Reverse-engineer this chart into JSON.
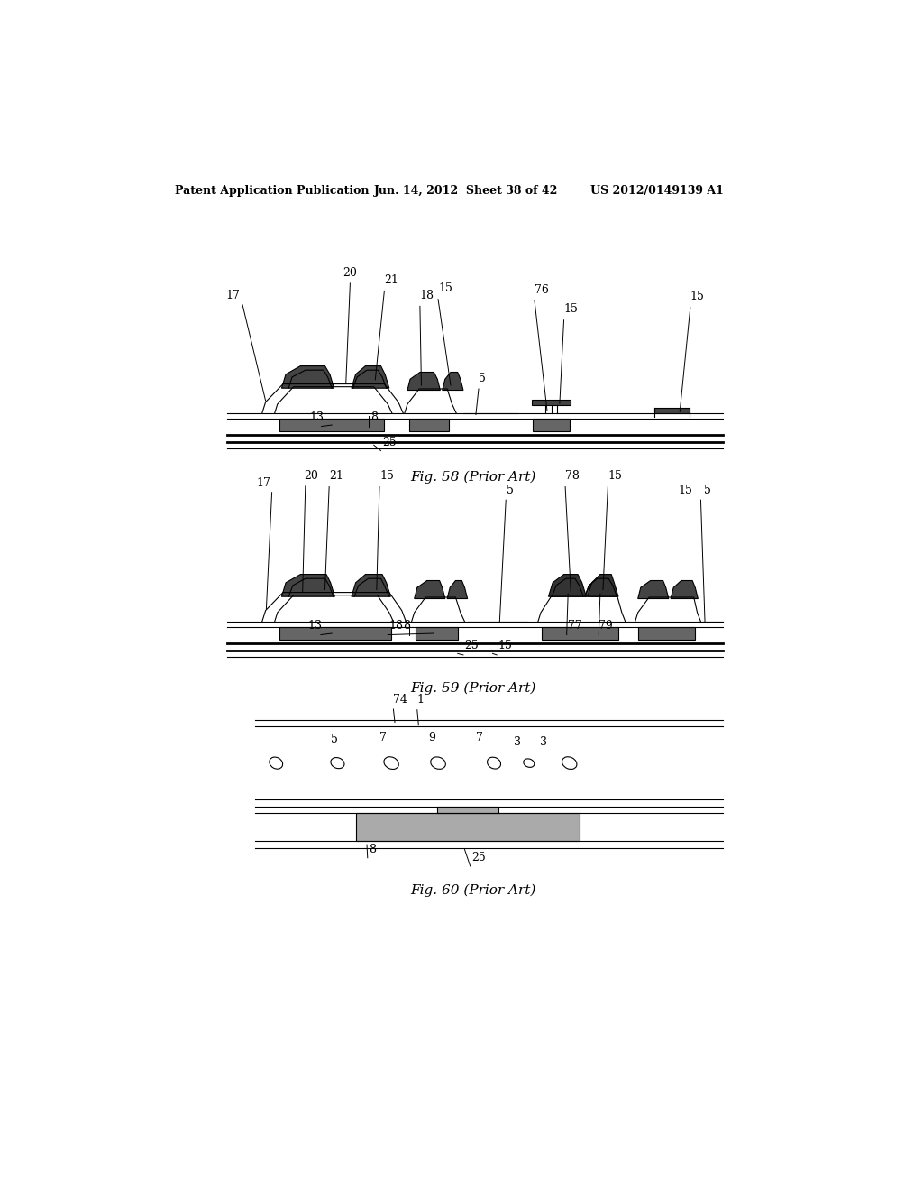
{
  "bg_color": "#ffffff",
  "header_left": "Patent Application Publication",
  "header_mid": "Jun. 14, 2012  Sheet 38 of 42",
  "header_right": "US 2012/0149139 A1",
  "fig58_caption": "Fig. 58 (Prior Art)",
  "fig59_caption": "Fig. 59 (Prior Art)",
  "fig60_caption": "Fig. 60 (Prior Art)"
}
